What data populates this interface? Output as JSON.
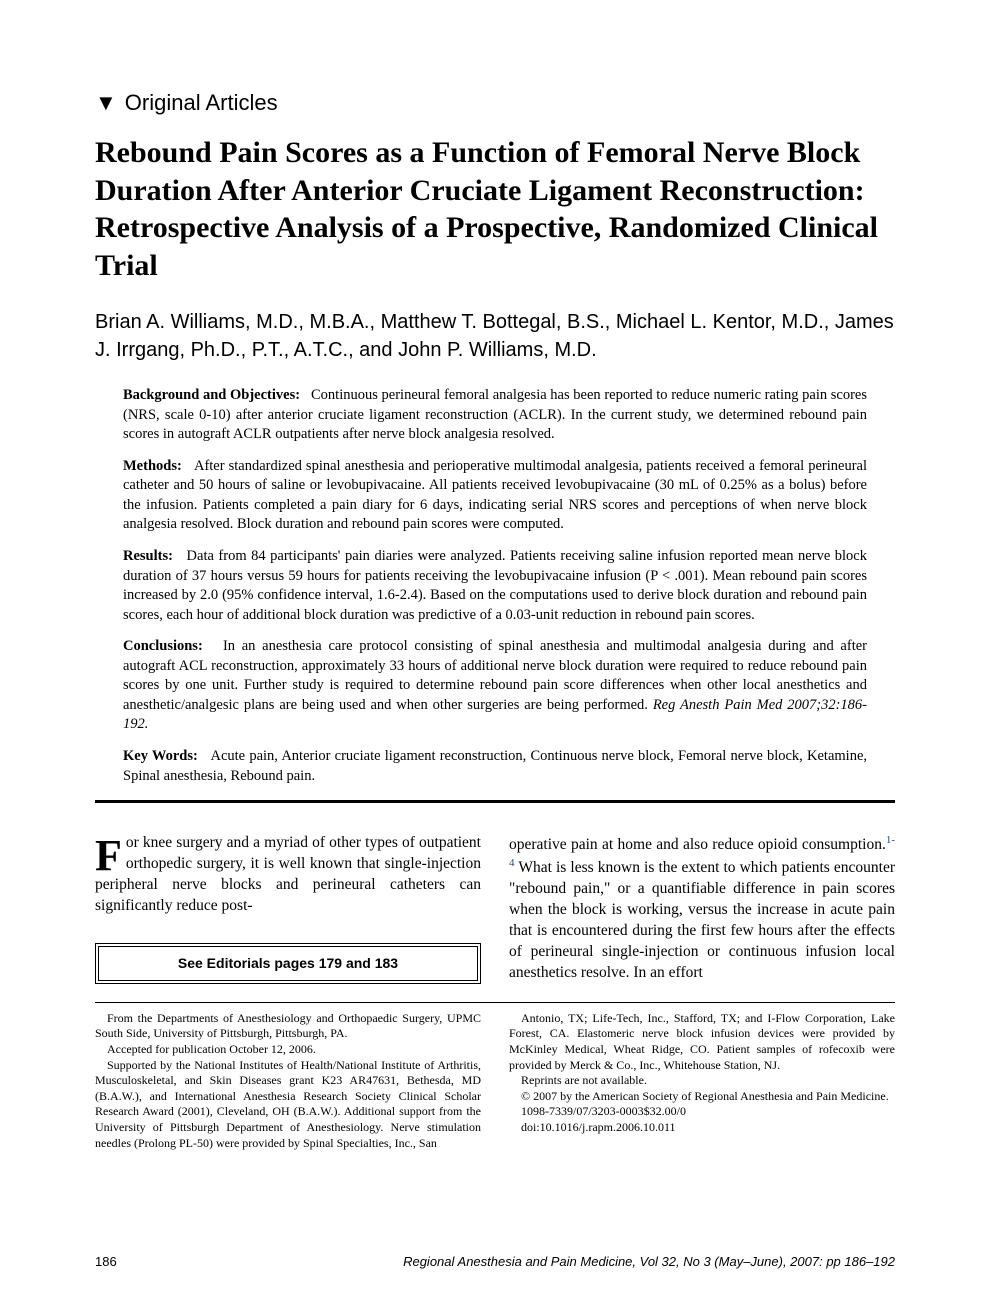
{
  "section": {
    "marker": "▼",
    "label": "Original Articles"
  },
  "title": "Rebound Pain Scores as a Function of Femoral Nerve Block Duration After Anterior Cruciate Ligament Reconstruction: Retrospective Analysis of a Prospective, Randomized Clinical Trial",
  "authors": "Brian A. Williams, M.D., M.B.A., Matthew T. Bottegal, B.S., Michael L. Kentor, M.D., James J. Irrgang, Ph.D., P.T., A.T.C., and John P. Williams, M.D.",
  "abstract": {
    "background": {
      "label": "Background and Objectives:",
      "text": "Continuous perineural femoral analgesia has been reported to reduce numeric rating pain scores (NRS, scale 0-10) after anterior cruciate ligament reconstruction (ACLR). In the current study, we determined rebound pain scores in autograft ACLR outpatients after nerve block analgesia resolved."
    },
    "methods": {
      "label": "Methods:",
      "text": "After standardized spinal anesthesia and perioperative multimodal analgesia, patients received a femoral perineural catheter and 50 hours of saline or levobupivacaine. All patients received levobupivacaine (30 mL of 0.25% as a bolus) before the infusion. Patients completed a pain diary for 6 days, indicating serial NRS scores and perceptions of when nerve block analgesia resolved. Block duration and rebound pain scores were computed."
    },
    "results": {
      "label": "Results:",
      "text": "Data from 84 participants' pain diaries were analyzed. Patients receiving saline infusion reported mean nerve block duration of 37 hours versus 59 hours for patients receiving the levobupivacaine infusion (P < .001). Mean rebound pain scores increased by 2.0 (95% confidence interval, 1.6-2.4). Based on the computations used to derive block duration and rebound pain scores, each hour of additional block duration was predictive of a 0.03-unit reduction in rebound pain scores."
    },
    "conclusions": {
      "label": "Conclusions:",
      "text": "In an anesthesia care protocol consisting of spinal anesthesia and multimodal analgesia during and after autograft ACL reconstruction, approximately 33 hours of additional nerve block duration were required to reduce rebound pain scores by one unit. Further study is required to determine rebound pain score differences when other local anesthetics and anesthetic/analgesic plans are being used and when other surgeries are being performed.",
      "citation": "Reg Anesth Pain Med 2007;32:186-192."
    },
    "keywords": {
      "label": "Key Words:",
      "text": "Acute pain, Anterior cruciate ligament reconstruction, Continuous nerve block, Femoral nerve block, Ketamine, Spinal anesthesia, Rebound pain."
    }
  },
  "body": {
    "dropcap": "F",
    "left": "or knee surgery and a myriad of other types of outpatient orthopedic surgery, it is well known that single-injection peripheral nerve blocks and perineural catheters can significantly reduce post-",
    "right_a": "operative pain at home and also reduce opioid consumption.",
    "right_sup": "1-4",
    "right_b": " What is less known is the extent to which patients encounter \"rebound pain,\" or a quantifiable difference in pain scores when the block is working, versus the increase in acute pain that is encountered during the first few hours after the effects of perineural single-injection or continuous infusion local anesthetics resolve. In an effort"
  },
  "editorial_box": "See Editorials pages 179 and 183",
  "footnotes": {
    "left": [
      "From the Departments of Anesthesiology and Orthopaedic Surgery, UPMC South Side, University of Pittsburgh, Pittsburgh, PA.",
      "Accepted for publication October 12, 2006.",
      "Supported by the National Institutes of Health/National Institute of Arthritis, Musculoskeletal, and Skin Diseases grant K23 AR47631, Bethesda, MD (B.A.W.), and International Anesthesia Research Society Clinical Scholar Research Award (2001), Cleveland, OH (B.A.W.). Additional support from the University of Pittsburgh Department of Anesthesiology. Nerve stimulation needles (Prolong PL-50) were provided by Spinal Specialties, Inc., San"
    ],
    "right": [
      "Antonio, TX; Life-Tech, Inc., Stafford, TX; and I-Flow Corporation, Lake Forest, CA. Elastomeric nerve block infusion devices were provided by McKinley Medical, Wheat Ridge, CO. Patient samples of rofecoxib were provided by Merck & Co., Inc., Whitehouse Station, NJ.",
      "Reprints are not available.",
      "© 2007 by the American Society of Regional Anesthesia and Pain Medicine.",
      "1098-7339/07/3203-0003$32.00/0",
      "doi:10.1016/j.rapm.2006.10.011"
    ]
  },
  "footer": {
    "page": "186",
    "journal": "Regional Anesthesia and Pain Medicine, Vol 32, No 3 (May–June), 2007: pp 186–192"
  }
}
